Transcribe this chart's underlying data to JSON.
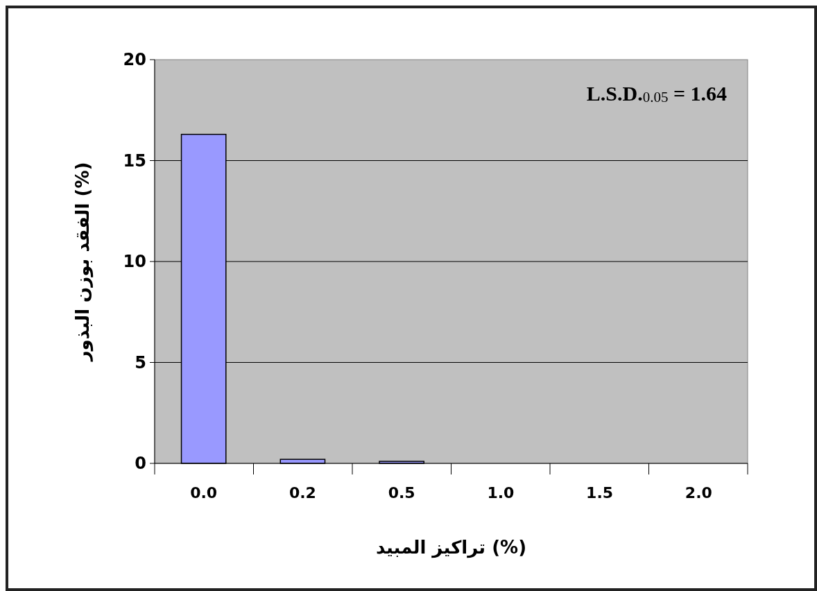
{
  "chart_data": {
    "type": "bar",
    "categories": [
      "0.0",
      "0.2",
      "0.5",
      "1.0",
      "1.5",
      "2.0"
    ],
    "values": [
      16.3,
      0.2,
      0.1,
      0,
      0,
      0
    ],
    "color": "#9999ff",
    "ylim": [
      0,
      20
    ],
    "yticks": [
      0,
      5,
      10,
      15,
      20
    ],
    "grid": "y",
    "xlabel": "تراكيز المبيد (%)",
    "ylabel": "الفقد بوزن البذور (%)",
    "annotations": [
      "L.S.D.$_{0.05}$ = 1.64"
    ]
  }
}
